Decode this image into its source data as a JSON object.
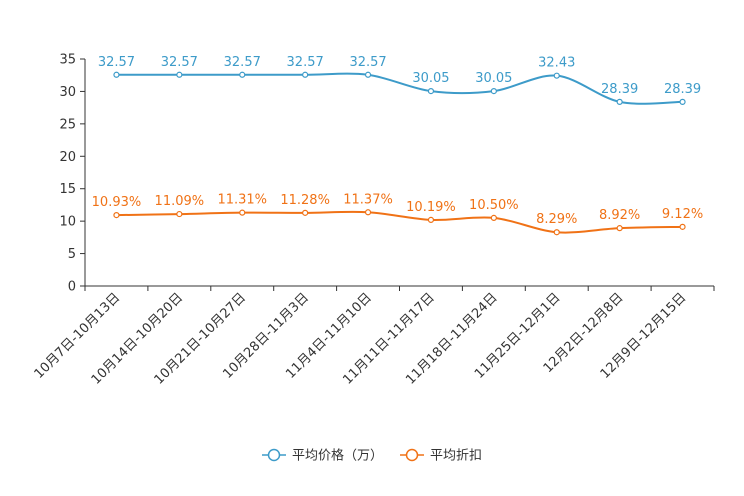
{
  "chart_data": {
    "type": "line",
    "categories": [
      "10月7日-10月13日",
      "10月14日-10月20日",
      "10月21日-10月27日",
      "10月28日-11月3日",
      "11月4日-11月10日",
      "11月11日-11月17日",
      "11月18日-11月24日",
      "11月25日-12月1日",
      "12月2日-12月8日",
      "12月9日-12月15日"
    ],
    "ylim": [
      0,
      35
    ],
    "yticks": [
      0,
      5,
      10,
      15,
      20,
      25,
      30,
      35
    ],
    "series": [
      {
        "name": "平均价格（万）",
        "color": "#3d9bc9",
        "values": [
          32.57,
          32.57,
          32.57,
          32.57,
          32.57,
          30.05,
          30.05,
          32.43,
          28.39,
          28.39
        ],
        "labels": [
          "32.57",
          "32.57",
          "32.57",
          "32.57",
          "32.57",
          "30.05",
          "30.05",
          "32.43",
          "28.39",
          "28.39"
        ]
      },
      {
        "name": "平均折扣",
        "color": "#f07216",
        "values": [
          10.93,
          11.09,
          11.31,
          11.28,
          11.37,
          10.19,
          10.5,
          8.29,
          8.92,
          9.12
        ],
        "labels": [
          "10.93%",
          "11.09%",
          "11.31%",
          "11.28%",
          "11.37%",
          "10.19%",
          "10.50%",
          "8.29%",
          "8.92%",
          "9.12%"
        ]
      }
    ],
    "legend_position": "bottom-center",
    "grid": false
  }
}
